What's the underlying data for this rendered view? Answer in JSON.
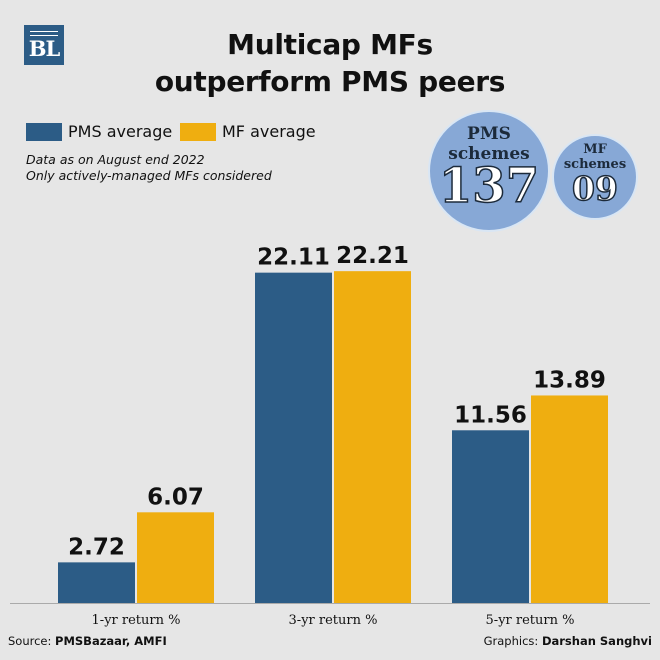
{
  "logo": {
    "text": "BL"
  },
  "title": {
    "line1": "Multicap MFs",
    "line2": "outperform PMS peers"
  },
  "notes": [
    "Data as on August end 2022",
    "Only actively-managed MFs considered"
  ],
  "bubbles": [
    {
      "label1": "PMS",
      "label2": "schemes",
      "value": "137"
    },
    {
      "label1": "MF",
      "label2": "schemes",
      "value": "09"
    }
  ],
  "chart_data": {
    "type": "bar",
    "categories": [
      "1-yr return %",
      "3-yr return %",
      "5-yr return %"
    ],
    "series": [
      {
        "name": "PMS average",
        "color": "#2c5c86",
        "values": [
          2.72,
          22.11,
          11.56
        ]
      },
      {
        "name": "MF average",
        "color": "#efae10",
        "values": [
          6.07,
          22.21,
          13.89
        ]
      }
    ],
    "value_labels": [
      [
        "2.72",
        "22.11",
        "11.56"
      ],
      [
        "6.07",
        "22.21",
        "13.89"
      ]
    ],
    "legend": "top-left",
    "grid": false,
    "ylim": [
      0,
      25.3
    ]
  },
  "footer": {
    "source_prefix": "Source: ",
    "source": "PMSBazaar, AMFI",
    "credit_prefix": "Graphics: ",
    "credit": "Darshan Sanghvi"
  }
}
